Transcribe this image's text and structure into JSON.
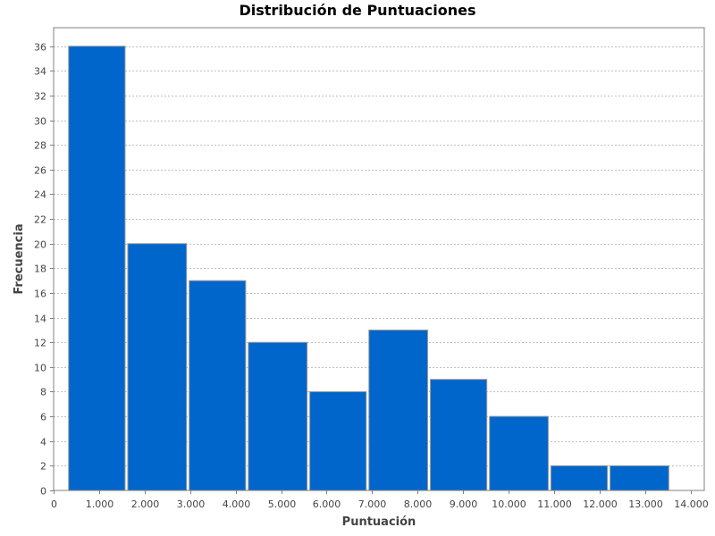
{
  "chart_data": {
    "type": "bar",
    "title": "Distribución de Puntuaciones",
    "xlabel": "Puntuación",
    "ylabel": "Frecuencia",
    "bins": [
      {
        "start": 0.3,
        "end": 1.6,
        "value": 36
      },
      {
        "start": 1.6,
        "end": 2.95,
        "value": 20
      },
      {
        "start": 2.95,
        "end": 4.25,
        "value": 17
      },
      {
        "start": 4.25,
        "end": 5.6,
        "value": 12
      },
      {
        "start": 5.6,
        "end": 6.9,
        "value": 8
      },
      {
        "start": 6.9,
        "end": 8.25,
        "value": 13
      },
      {
        "start": 8.25,
        "end": 9.55,
        "value": 9
      },
      {
        "start": 9.55,
        "end": 10.9,
        "value": 6
      },
      {
        "start": 10.9,
        "end": 12.2,
        "value": 2
      },
      {
        "start": 12.2,
        "end": 13.55,
        "value": 2
      }
    ],
    "xlim": [
      0,
      14.3
    ],
    "ylim": [
      0,
      37.5
    ],
    "x_ticks": [
      0,
      1,
      2,
      3,
      4,
      5,
      6,
      7,
      8,
      9,
      10,
      11,
      12,
      13,
      14
    ],
    "x_tick_labels": [
      "0",
      "1.000",
      "2.000",
      "3.000",
      "4.000",
      "5.000",
      "6.000",
      "7.000",
      "8.000",
      "9.000",
      "10.000",
      "11.000",
      "12.000",
      "13.000",
      "14.000"
    ],
    "y_ticks": [
      0,
      2,
      4,
      6,
      8,
      10,
      12,
      14,
      16,
      18,
      20,
      22,
      24,
      26,
      28,
      30,
      32,
      34,
      36
    ],
    "y_tick_labels": [
      "0",
      "2",
      "4",
      "6",
      "8",
      "10",
      "12",
      "14",
      "16",
      "18",
      "20",
      "22",
      "24",
      "26",
      "28",
      "30",
      "32",
      "34",
      "36"
    ],
    "grid": true,
    "legend": "none",
    "bar_color": "#0066CC",
    "bar_edge_color": "#999999",
    "grid_color": "#c0c0c0"
  }
}
